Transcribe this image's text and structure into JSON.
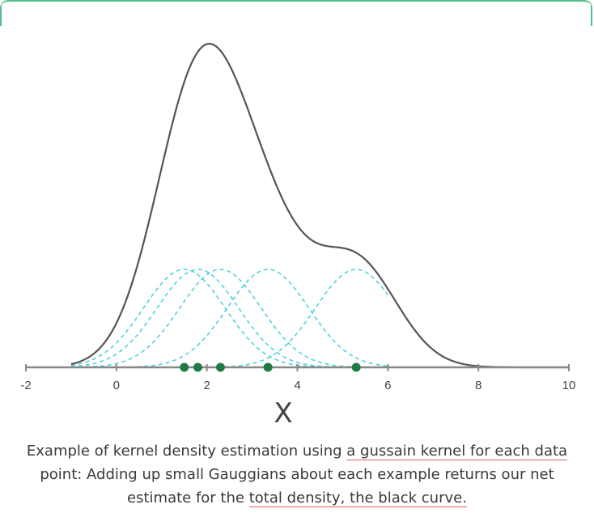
{
  "chart_data": {
    "type": "line",
    "xlabel": "X",
    "xlim": [
      -2,
      10
    ],
    "x_ticks": [
      "-2",
      "0",
      "2",
      "4",
      "6",
      "8",
      "10"
    ],
    "data_points": [
      1.5,
      1.8,
      2.3,
      3.35,
      5.3
    ],
    "kernel_bandwidth": 0.9,
    "kernel_range": [
      -1,
      6
    ],
    "total_density_range": [
      -1,
      10
    ],
    "colors": {
      "total_density": "#555555",
      "kernels": "#4fd2dc",
      "points": "#1f7a46",
      "axis": "#888888"
    },
    "grid": false
  },
  "caption": {
    "line1_pre": "Example of kernel density estimation using ",
    "line1_hl": "a gussain kernel for each data",
    "line2": "point: Adding up small Gauggians about each example returns our net",
    "line3_pre": "estimate for the ",
    "line3_hl": "total density, the black curve."
  }
}
